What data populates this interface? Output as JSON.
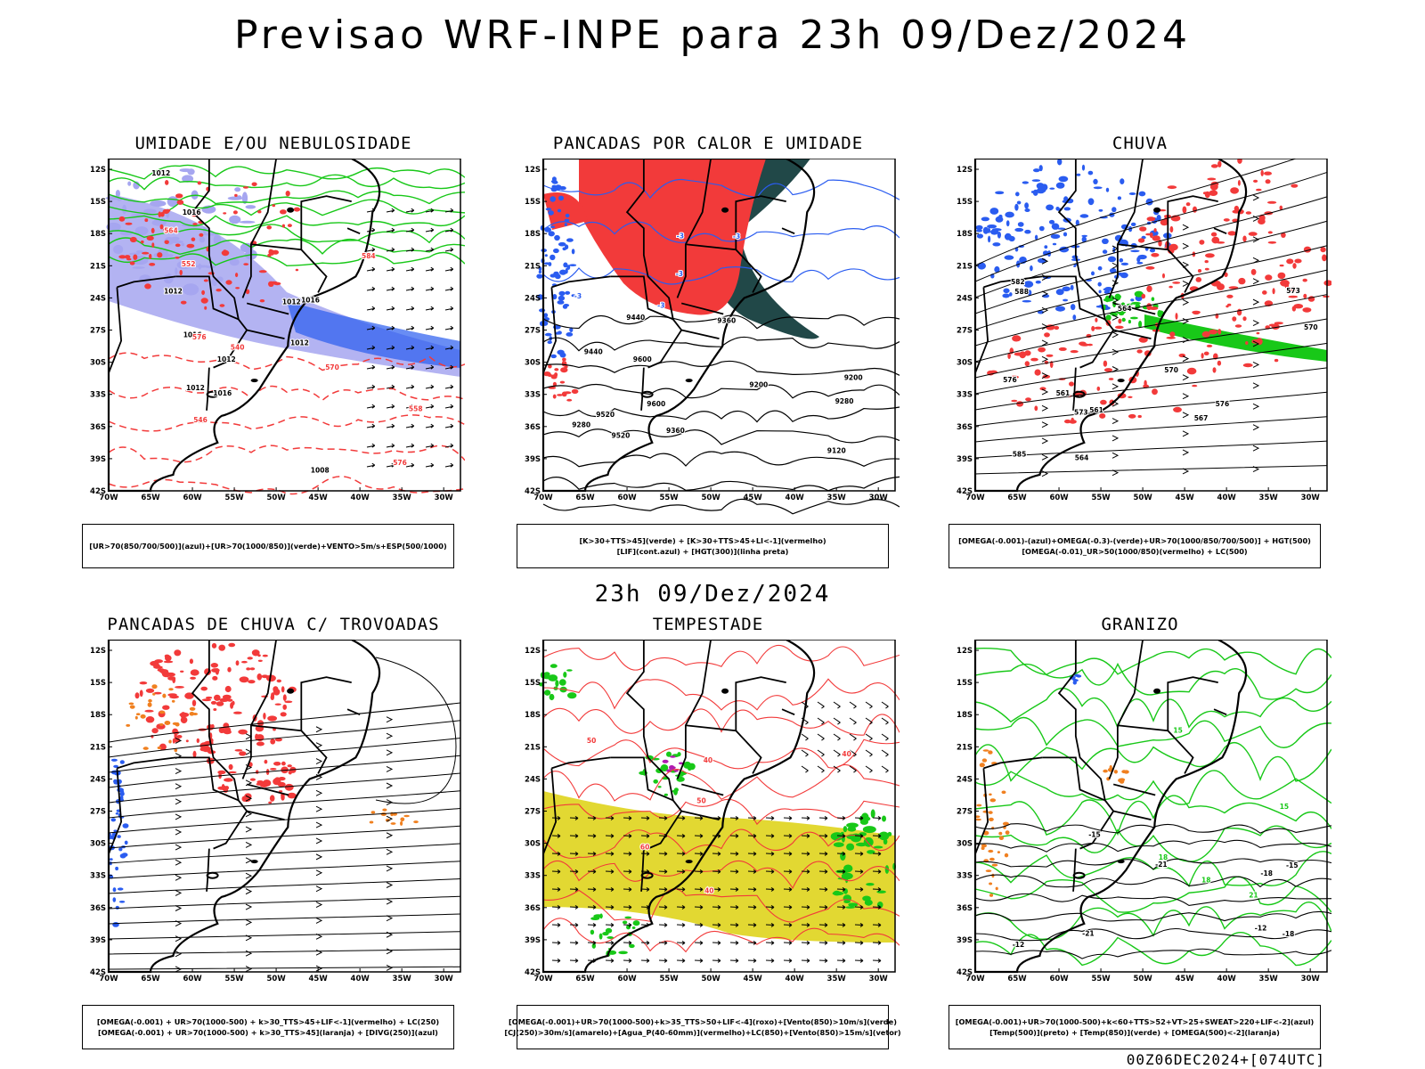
{
  "title": "Previsao WRF-INPE  para 23h 09/Dez/2024",
  "mid_date": "23h 09/Dez/2024",
  "footer": "00Z06DEC2024+[074UTC]",
  "axes": {
    "lat_labels": [
      "12S",
      "15S",
      "18S",
      "21S",
      "24S",
      "27S",
      "30S",
      "33S",
      "36S",
      "39S",
      "42S"
    ],
    "lon_labels": [
      "70W",
      "65W",
      "60W",
      "55W",
      "50W",
      "45W",
      "40W",
      "35W",
      "30W"
    ]
  },
  "colors": {
    "blue": "#2a5cf0",
    "lavender": "#a6a6f0",
    "green": "#18c818",
    "red": "#f23a3a",
    "darkteal": "#214848",
    "yellow": "#e2d832",
    "orange": "#f08020",
    "purple": "#b01ab0",
    "black": "#000000"
  },
  "panels": [
    {
      "id": "p1",
      "title": "UMIDADE E/OU NEBULOSIDADE",
      "caption": [
        "[UR>70(850/700/500)](azul)+[UR>70(1000/850)](verde)+VENTO>5m/s+ESP(500/1000)"
      ],
      "labels": [
        "1012",
        "1012",
        "1012",
        "1012",
        "1008",
        "1016",
        "1016",
        "1016",
        "1012",
        "1012",
        "1016",
        "576",
        "576",
        "570",
        "564",
        "558",
        "552",
        "546",
        "540",
        "584"
      ]
    },
    {
      "id": "p2",
      "title": "PANCADAS POR CALOR E UMIDADE",
      "caption": [
        "[K>30+TTS>45](verde) + [K>30+TTS>45+LI<-1](vermelho)",
        "[LIF](cont.azul) + [HGT(300)](linha preta)"
      ],
      "labels": [
        "9600",
        "9520",
        "9440",
        "9360",
        "9280",
        "9200",
        "9120",
        "9600",
        "9520",
        "9440",
        "9360",
        "9280",
        "9200",
        "-3",
        "-3",
        "-3",
        "-3",
        "-3"
      ]
    },
    {
      "id": "p3",
      "title": "CHUVA",
      "caption": [
        "[OMEGA(-0.001)-(azul)+OMEGA(-0.3)-(verde)+UR>70(1000/850/700/500)] + HGT(500)",
        "[OMEGA(-0.01)_UR>50(1000/850)(vermelho) + LC(500)"
      ],
      "labels": [
        "588",
        "582",
        "576",
        "573",
        "570",
        "567",
        "564",
        "561",
        "585",
        "576",
        "573",
        "570",
        "564",
        "561"
      ]
    },
    {
      "id": "p4",
      "title": "PANCADAS DE CHUVA C/ TROVOADAS",
      "caption": [
        "[OMEGA(-0.001) + UR>70(1000-500) + k>30_TTS>45+LIF<-1](vermelho) + LC(250)",
        "[OMEGA(-0.001) + UR>70(1000-500) + k>30_TTS>45](laranja) + [DIVG(250)](azul)"
      ],
      "labels": []
    },
    {
      "id": "p5",
      "title": "TEMPESTADE",
      "caption": [
        "[OMEGA(-0.001)+UR>70(1000-500)+k>35_TTS>50+LIF<-4](roxo)+[Vento(850)>10m/s](verde)",
        "[CJ(250)>30m/s](amarelo)+[Agua_P(40-60mm)](vermelho)+LC(850)+[Vento(850)>15m/s](vetor)"
      ],
      "labels": [
        "50",
        "40",
        "40",
        "60",
        "50",
        "40"
      ]
    },
    {
      "id": "p6",
      "title": "GRANIZO",
      "caption": [
        "[OMEGA(-0.001)+UR>70(1000-500)+k<60+TTS>52+VT>25+SWEAT>220+LIF<-2](azul)",
        "[Temp(500)](preto) + [Temp(850)](verde) + [OMEGA(500)<-2](laranja)"
      ],
      "labels": [
        "-12",
        "-15",
        "-18",
        "-21",
        "-12",
        "-15",
        "-18",
        "-21",
        "15",
        "18",
        "21",
        "15",
        "18"
      ]
    }
  ]
}
